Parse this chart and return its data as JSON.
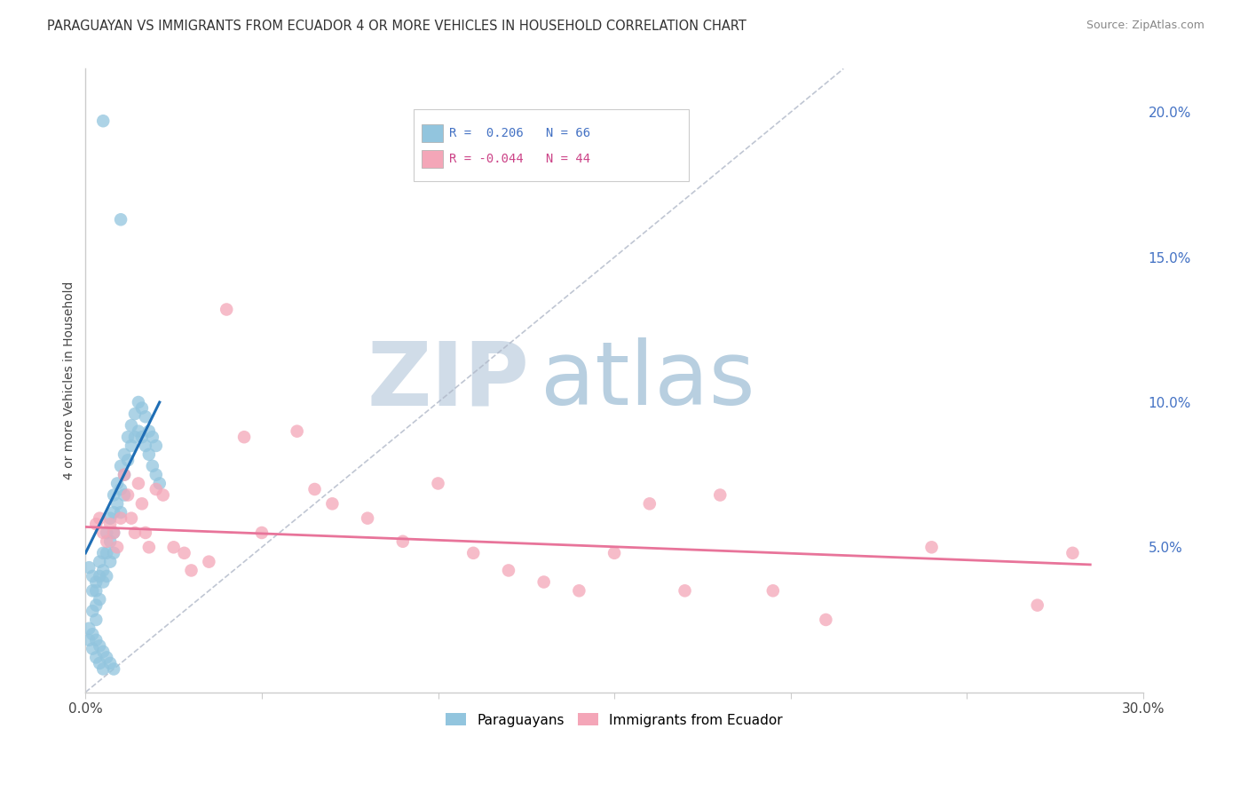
{
  "title": "PARAGUAYAN VS IMMIGRANTS FROM ECUADOR 4 OR MORE VEHICLES IN HOUSEHOLD CORRELATION CHART",
  "source": "Source: ZipAtlas.com",
  "ylabel": "4 or more Vehicles in Household",
  "xlim": [
    0.0,
    0.3
  ],
  "ylim": [
    0.0,
    0.215
  ],
  "xticks": [
    0.0,
    0.05,
    0.1,
    0.15,
    0.2,
    0.25,
    0.3
  ],
  "xticklabels": [
    "0.0%",
    "",
    "",
    "",
    "",
    "",
    "30.0%"
  ],
  "yticks_right": [
    0.05,
    0.1,
    0.15,
    0.2
  ],
  "ytick_right_labels": [
    "5.0%",
    "10.0%",
    "15.0%",
    "20.0%"
  ],
  "blue_color": "#92c5de",
  "pink_color": "#f4a6b8",
  "blue_line_color": "#1f6eb5",
  "pink_line_color": "#e8749a",
  "background_color": "#ffffff",
  "grid_color": "#d8d8d8",
  "watermark_zip": "ZIP",
  "watermark_atlas": "atlas",
  "watermark_color_zip": "#d0dce8",
  "watermark_color_atlas": "#b8cfe0",
  "watermark_fontsize": 72,
  "blue_scatter_x": [
    0.005,
    0.01,
    0.001,
    0.002,
    0.002,
    0.002,
    0.003,
    0.003,
    0.003,
    0.003,
    0.004,
    0.004,
    0.004,
    0.005,
    0.005,
    0.005,
    0.006,
    0.006,
    0.006,
    0.007,
    0.007,
    0.007,
    0.008,
    0.008,
    0.008,
    0.008,
    0.009,
    0.009,
    0.01,
    0.01,
    0.01,
    0.011,
    0.011,
    0.011,
    0.012,
    0.012,
    0.013,
    0.013,
    0.014,
    0.014,
    0.015,
    0.015,
    0.016,
    0.016,
    0.017,
    0.017,
    0.018,
    0.018,
    0.019,
    0.019,
    0.02,
    0.02,
    0.001,
    0.001,
    0.002,
    0.002,
    0.003,
    0.003,
    0.004,
    0.004,
    0.005,
    0.005,
    0.006,
    0.007,
    0.008,
    0.021
  ],
  "blue_scatter_y": [
    0.197,
    0.163,
    0.043,
    0.04,
    0.035,
    0.028,
    0.038,
    0.035,
    0.03,
    0.025,
    0.045,
    0.04,
    0.032,
    0.048,
    0.042,
    0.038,
    0.055,
    0.048,
    0.04,
    0.06,
    0.052,
    0.045,
    0.068,
    0.062,
    0.055,
    0.048,
    0.072,
    0.065,
    0.078,
    0.07,
    0.062,
    0.082,
    0.075,
    0.068,
    0.088,
    0.08,
    0.092,
    0.085,
    0.096,
    0.088,
    0.1,
    0.09,
    0.098,
    0.088,
    0.095,
    0.085,
    0.09,
    0.082,
    0.088,
    0.078,
    0.085,
    0.075,
    0.022,
    0.018,
    0.02,
    0.015,
    0.018,
    0.012,
    0.016,
    0.01,
    0.014,
    0.008,
    0.012,
    0.01,
    0.008,
    0.072
  ],
  "pink_scatter_x": [
    0.003,
    0.004,
    0.005,
    0.006,
    0.007,
    0.008,
    0.009,
    0.01,
    0.011,
    0.012,
    0.013,
    0.014,
    0.015,
    0.016,
    0.017,
    0.018,
    0.02,
    0.022,
    0.025,
    0.028,
    0.03,
    0.035,
    0.04,
    0.045,
    0.05,
    0.06,
    0.065,
    0.07,
    0.08,
    0.09,
    0.1,
    0.11,
    0.12,
    0.13,
    0.14,
    0.15,
    0.16,
    0.17,
    0.18,
    0.195,
    0.21,
    0.24,
    0.27,
    0.28
  ],
  "pink_scatter_y": [
    0.058,
    0.06,
    0.055,
    0.052,
    0.058,
    0.055,
    0.05,
    0.06,
    0.075,
    0.068,
    0.06,
    0.055,
    0.072,
    0.065,
    0.055,
    0.05,
    0.07,
    0.068,
    0.05,
    0.048,
    0.042,
    0.045,
    0.132,
    0.088,
    0.055,
    0.09,
    0.07,
    0.065,
    0.06,
    0.052,
    0.072,
    0.048,
    0.042,
    0.038,
    0.035,
    0.048,
    0.065,
    0.035,
    0.068,
    0.035,
    0.025,
    0.05,
    0.03,
    0.048
  ],
  "blue_line_x0": 0.0,
  "blue_line_x1": 0.021,
  "blue_line_y0": 0.048,
  "blue_line_y1": 0.1,
  "pink_line_x0": 0.0,
  "pink_line_x1": 0.285,
  "pink_line_y0": 0.057,
  "pink_line_y1": 0.044
}
